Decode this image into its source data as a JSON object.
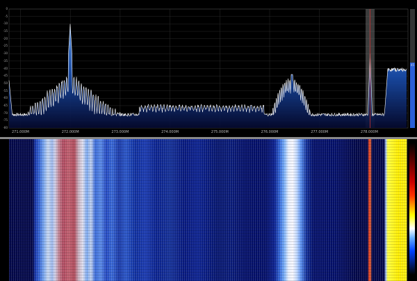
{
  "spectrum": {
    "y_labels": [
      "0",
      "-5",
      "-10",
      "-15",
      "-20",
      "-25",
      "-30",
      "-35",
      "-40",
      "-45",
      "-50",
      "-55",
      "-60",
      "-65",
      "-70",
      "-75",
      "-80"
    ],
    "x_labels": [
      "271.000M",
      "272.000M",
      "273.000M",
      "274.000M",
      "275.000M",
      "276.000M",
      "277.000M",
      "278.000M"
    ],
    "level_value": "45",
    "level_fraction": 0.55,
    "trace_color": "#ffffff",
    "fill_color": "#1a4fb0",
    "tuned_frequency": "278.000M",
    "tuned_marker_color": "#c03030"
  },
  "waterfall": {
    "palette": [
      "#03084a",
      "#1a3ab0",
      "#ffffff",
      "#ffee00",
      "#c00000"
    ]
  }
}
